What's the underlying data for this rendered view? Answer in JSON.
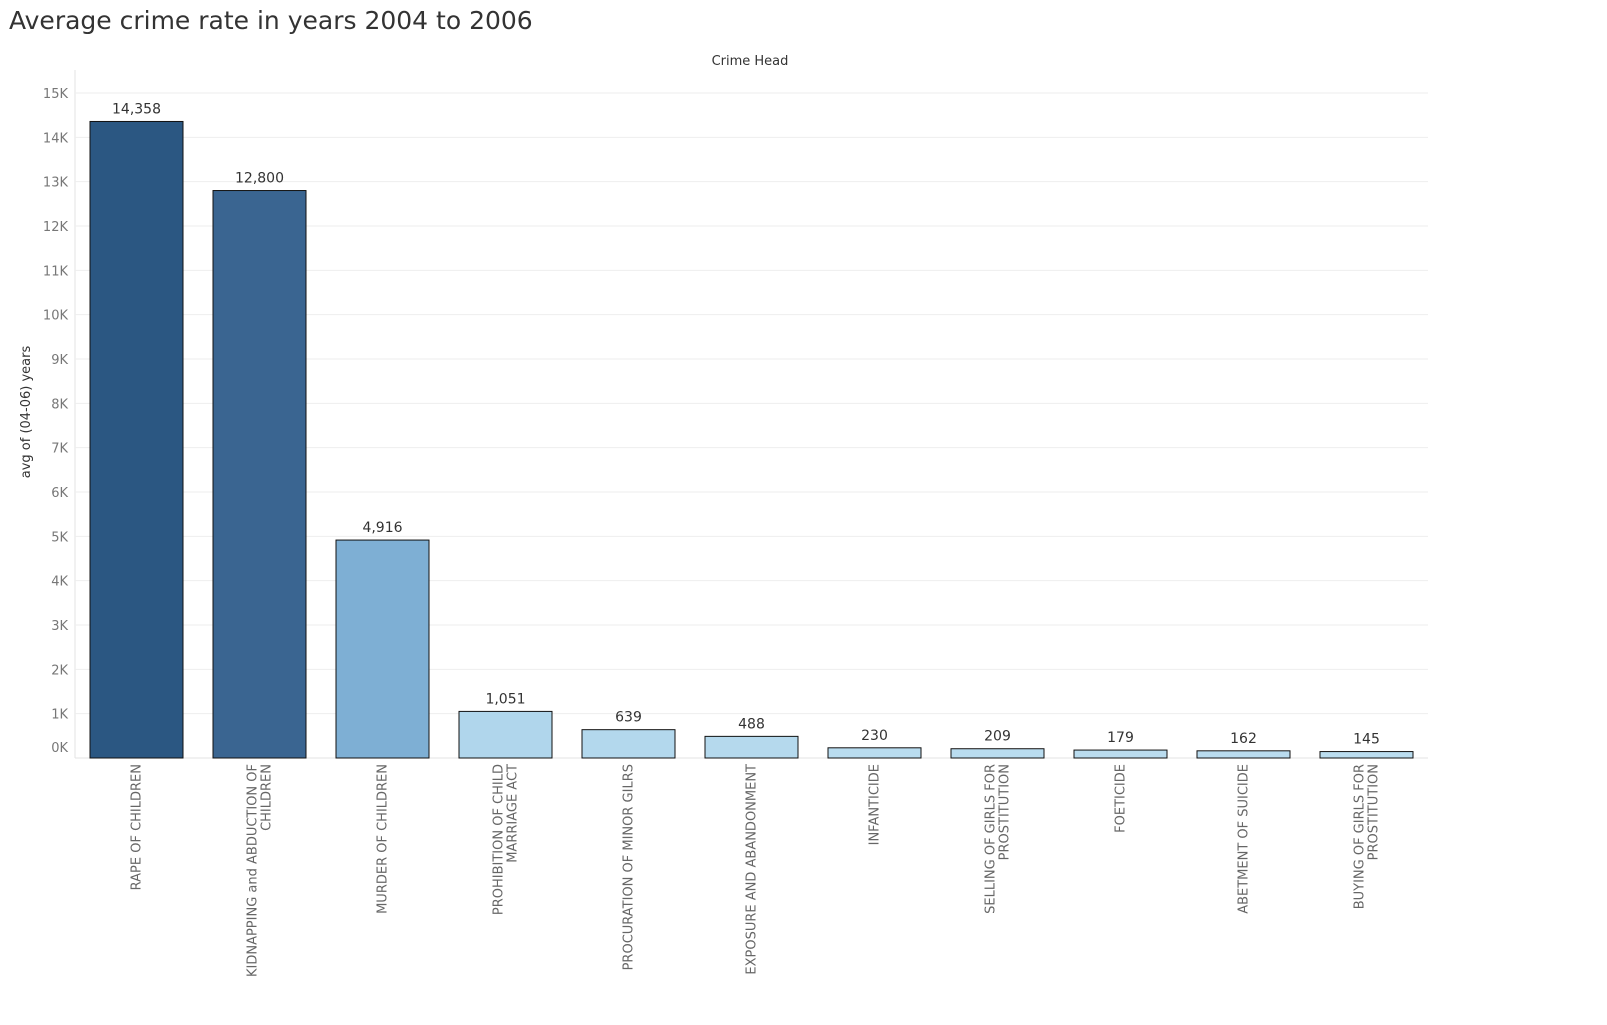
{
  "chart_data": {
    "type": "bar",
    "title": "Average crime rate in years 2004 to 2006",
    "column_header": "Crime Head",
    "ylabel": "avg of (04-06) years",
    "xlabel": "",
    "ylim": [
      0,
      15000
    ],
    "y_ticks": [
      0,
      1000,
      2000,
      3000,
      4000,
      5000,
      6000,
      7000,
      8000,
      9000,
      10000,
      11000,
      12000,
      13000,
      14000,
      15000
    ],
    "y_tick_labels": [
      "0K",
      "1K",
      "2K",
      "3K",
      "4K",
      "5K",
      "6K",
      "7K",
      "8K",
      "9K",
      "10K",
      "11K",
      "12K",
      "13K",
      "14K",
      "15K"
    ],
    "grid": true,
    "categories": [
      [
        "RAPE OF CHILDREN"
      ],
      [
        "KIDNAPPING and ABDUCTION OF",
        "CHILDREN"
      ],
      [
        "MURDER OF CHILDREN"
      ],
      [
        "PROHIBITION OF CHILD",
        "MARRIAGE ACT"
      ],
      [
        "PROCURATION OF MINOR GILRS"
      ],
      [
        "EXPOSURE AND ABANDONMENT"
      ],
      [
        "INFANTICIDE"
      ],
      [
        "SELLING OF GIRLS FOR",
        "PROSTITUTION"
      ],
      [
        "FOETICIDE"
      ],
      [
        "ABETMENT OF SUICIDE"
      ],
      [
        "BUYING OF GIRLS FOR",
        "PROSTITUTION"
      ]
    ],
    "values": [
      14358,
      12800,
      4916,
      1051,
      639,
      488,
      230,
      209,
      179,
      162,
      145
    ],
    "value_labels": [
      "14,358",
      "12,800",
      "4,916",
      "1,051",
      "639",
      "488",
      "230",
      "209",
      "179",
      "162",
      "145"
    ],
    "colors": [
      "#2b5782",
      "#3a6591",
      "#7eafd4",
      "#b0d6ec",
      "#b3d8ed",
      "#b5d9ed",
      "#b9dcef",
      "#b9dcef",
      "#badcef",
      "#badcef",
      "#bbddef"
    ]
  }
}
